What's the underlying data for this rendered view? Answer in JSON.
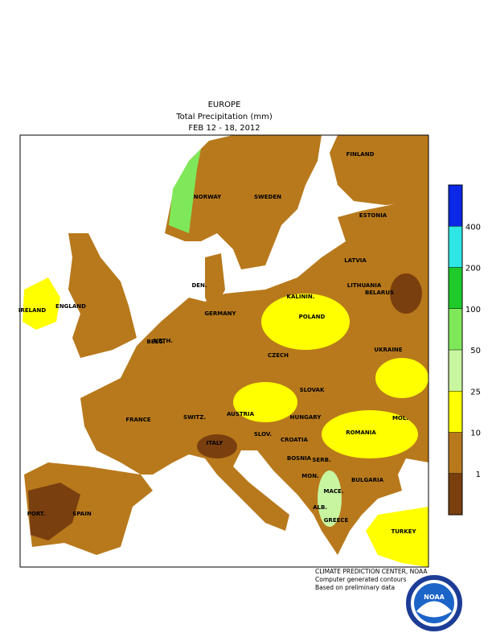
{
  "header": {
    "title": "EUROPE",
    "subtitle": "Total Precipitation (mm)",
    "period": "FEB 12 - 18, 2012"
  },
  "map": {
    "countries": [
      "FINLAND",
      "NORWAY",
      "SWEDEN",
      "ESTONIA",
      "LATVIA",
      "DEN.",
      "LITHUANIA",
      "KALININ.",
      "IRELAND",
      "ENGLAND",
      "BELARUS",
      "NETH.",
      "GERMANY",
      "POLAND",
      "BELG.",
      "CZECH",
      "UKRAINE",
      "SLOVAK",
      "FRANCE",
      "SWITZ.",
      "AUSTRIA",
      "HUNGARY",
      "MOL.",
      "ROMANIA",
      "SLOV.",
      "CROATIA",
      "ITALY",
      "BOSNIA",
      "SERB.",
      "BULGARIA",
      "MON.",
      "MACE.",
      "PORT.",
      "SPAIN",
      "ALB.",
      "GREECE",
      "TURKEY"
    ]
  },
  "legend": {
    "ticks": [
      1,
      10,
      25,
      50,
      100,
      200,
      400
    ],
    "colors": [
      "#7a3f0f",
      "#b8791c",
      "#ffff00",
      "#c8f5a0",
      "#7fe85a",
      "#1ecb2a",
      "#2ee6e6",
      "#0a28e6"
    ]
  },
  "footer": {
    "credits": [
      "CLIMATE PREDICTION CENTER, NOAA",
      "Computer generated contours",
      "Based on preliminary data"
    ],
    "logo": "NOAA"
  }
}
